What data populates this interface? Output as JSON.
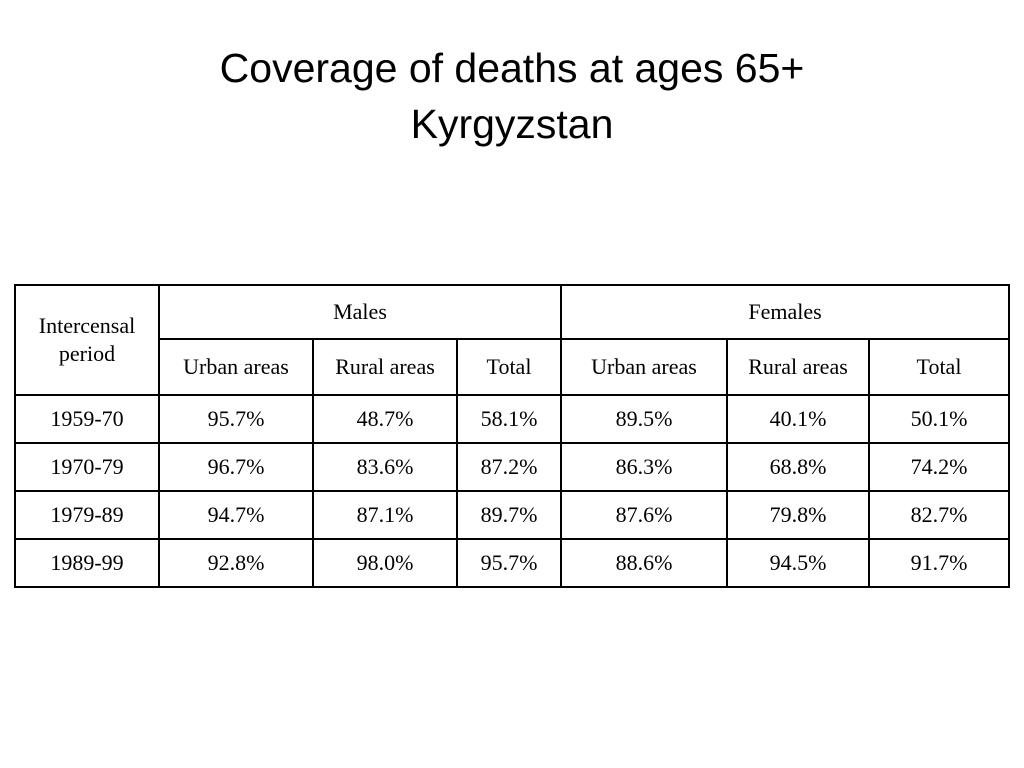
{
  "slide": {
    "title_line1": "Coverage of deaths at ages 65+",
    "title_line2": "Kyrgyzstan"
  },
  "table": {
    "period_header": "Intercensal period",
    "group_headers": [
      "Males",
      "Females"
    ],
    "sub_headers": [
      "Urban areas",
      "Rural areas",
      "Total",
      "Urban areas",
      "Rural areas",
      "Total"
    ],
    "rows": [
      {
        "period": "1959-70",
        "values": [
          "95.7%",
          "48.7%",
          "58.1%",
          "89.5%",
          "40.1%",
          "50.1%"
        ]
      },
      {
        "period": "1970-79",
        "values": [
          "96.7%",
          "83.6%",
          "87.2%",
          "86.3%",
          "68.8%",
          "74.2%"
        ]
      },
      {
        "period": "1979-89",
        "values": [
          "94.7%",
          "87.1%",
          "89.7%",
          "87.6%",
          "79.8%",
          "82.7%"
        ]
      },
      {
        "period": "1989-99",
        "values": [
          "92.8%",
          "98.0%",
          "95.7%",
          "88.6%",
          "94.5%",
          "91.7%"
        ]
      }
    ]
  }
}
